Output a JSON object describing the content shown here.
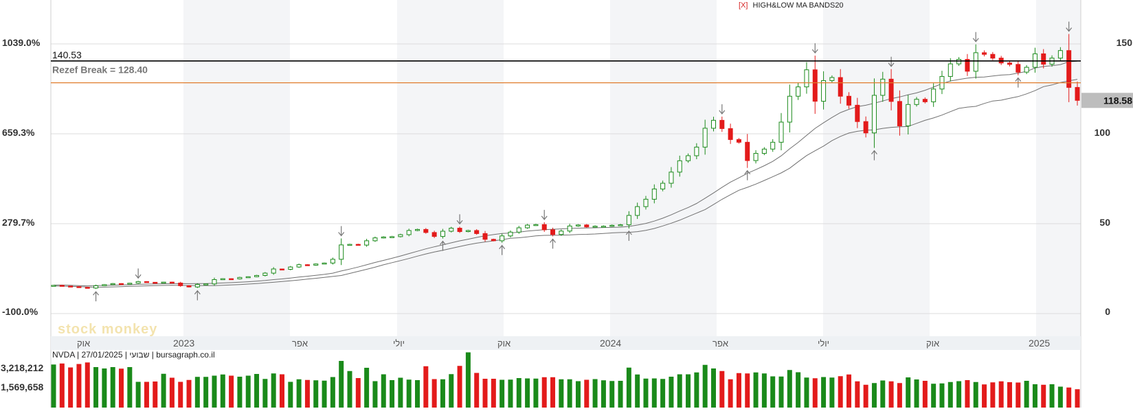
{
  "chart_data": {
    "type": "candlestick",
    "indicator_label_prefix": "[X]",
    "indicator_label": "HIGH&LOW MA BANDS20",
    "left_axis_ticks": [
      "1039.0%",
      "659.3%",
      "279.7%",
      "-100.0%"
    ],
    "right_axis_ticks": [
      "150",
      "100",
      "50",
      "0"
    ],
    "price_ylim": [
      0,
      160
    ],
    "x_labels": [
      "אוק",
      "2023",
      "אפר",
      "יולי",
      "אוק",
      "2024",
      "אפר",
      "יולי",
      "אוק",
      "2025"
    ],
    "resistance": {
      "value": 140.53,
      "label": "140.53"
    },
    "break_line": {
      "value": 128.4,
      "label": "Rezef Break = 128.40"
    },
    "last_price": {
      "value": 118.58,
      "label": "118.58"
    },
    "watermark": "stock monkey",
    "info_text": "NVDA | 27/01/2025 | שבועי | bursagraph.co.il",
    "volume_axis_ticks": [
      "3,218,212",
      "1,569,658"
    ],
    "weekly_close": [
      15.7,
      15.3,
      15.0,
      14.6,
      14.2,
      15.5,
      16.1,
      16.7,
      16.5,
      16.9,
      17.8,
      17.4,
      17.2,
      17.5,
      17.0,
      15.5,
      14.8,
      16.2,
      16.5,
      18.9,
      19.4,
      19.3,
      20.1,
      20.5,
      21.2,
      22.5,
      24.8,
      24.6,
      25.9,
      27.2,
      26.9,
      27.6,
      28.1,
      30.2,
      38.2,
      38.5,
      38.1,
      40.5,
      42.1,
      42.6,
      42.8,
      43.9,
      46.2,
      46.8,
      45.1,
      42.9,
      45.8,
      47.5,
      45.6,
      46.2,
      44.5,
      41.3,
      40.5,
      43.2,
      45.3,
      47.7,
      49.2,
      49.5,
      46.6,
      44.0,
      45.9,
      48.7,
      49.3,
      48.2,
      48.6,
      48.6,
      49.1,
      49.4,
      54.6,
      59.5,
      63.6,
      69.3,
      72.5,
      78.7,
      85.0,
      87.8,
      92.6,
      103.1,
      107.5,
      102.9,
      96.8,
      95.3,
      85.1,
      89.1,
      91.5,
      95.3,
      106.5,
      120.9,
      126.1,
      135.6,
      118.1,
      129.6,
      131.3,
      120.9,
      115.9,
      106.8,
      100.5,
      121.4,
      130.4,
      118.0,
      104.4,
      116.3,
      119.2,
      117.8,
      124.9,
      131.9,
      138.9,
      141.4,
      134.8,
      145.1,
      144.2,
      142.1,
      139.4,
      138.6,
      134.3,
      137.0,
      144.5,
      138.7,
      142.1,
      146.3,
      125.8,
      118.6
    ],
    "weekly_volume": [
      2.51,
      2.57,
      2.34,
      2.54,
      2.63,
      2.36,
      2.28,
      2.36,
      2.27,
      2.36,
      1.5,
      1.5,
      1.52,
      1.97,
      1.74,
      1.5,
      1.61,
      1.79,
      1.79,
      1.86,
      1.93,
      1.86,
      1.8,
      1.86,
      1.96,
      1.67,
      1.99,
      1.94,
      1.5,
      1.65,
      1.61,
      1.59,
      1.57,
      1.78,
      2.72,
      2.13,
      1.72,
      2.32,
      1.54,
      1.94,
      1.6,
      1.74,
      1.63,
      1.6,
      2.41,
      1.66,
      1.65,
      1.95,
      2.43,
      3.22,
      2.02,
      1.68,
      1.68,
      1.62,
      1.63,
      1.72,
      1.7,
      1.69,
      1.77,
      1.77,
      1.65,
      1.65,
      1.54,
      1.62,
      1.66,
      1.59,
      1.55,
      1.56,
      2.33,
      1.93,
      1.69,
      1.7,
      1.67,
      1.8,
      1.94,
      1.94,
      2.05,
      2.49,
      2.28,
      2.13,
      1.65,
      2.01,
      1.99,
      2.05,
      1.99,
      1.82,
      1.81,
      2.19,
      2.06,
      1.75,
      1.71,
      1.78,
      1.75,
      1.83,
      1.93,
      1.53,
      1.33,
      1.43,
      1.58,
      1.53,
      1.43,
      1.76,
      1.64,
      1.56,
      1.39,
      1.41,
      1.49,
      1.54,
      1.6,
      1.49,
      1.35,
      1.47,
      1.53,
      1.48,
      1.46,
      1.56,
      1.36,
      1.33,
      1.36,
      1.22,
      1.17,
      1.07
    ]
  }
}
